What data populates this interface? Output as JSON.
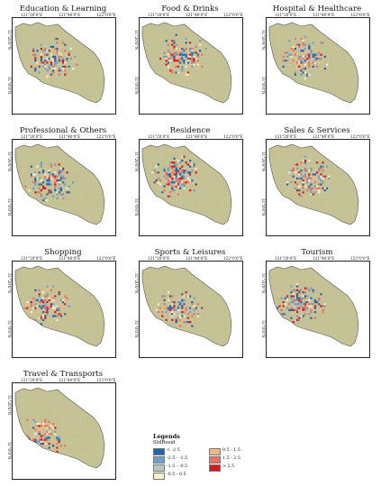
{
  "panels": [
    {
      "title": "Education & Learning"
    },
    {
      "title": "Food & Drinks"
    },
    {
      "title": "Hospital & Healthcare"
    },
    {
      "title": "Professional & Others"
    },
    {
      "title": "Residence"
    },
    {
      "title": "Sales & Services"
    },
    {
      "title": "Shopping"
    },
    {
      "title": "Sports & Leisures"
    },
    {
      "title": "Tourism"
    },
    {
      "title": "Travel & Transports"
    }
  ],
  "axis_ticks": {
    "longitude": [
      "121°20'0\"E",
      "121°40'0\"E",
      "122°0'0\"E"
    ],
    "latitude": [
      "31°20'0\"N",
      "31°0'0\"N"
    ]
  },
  "legend": {
    "title": "Legends",
    "subtitle": "StdResid",
    "classes": [
      {
        "label": "< -2.5",
        "color": "#2166ac"
      },
      {
        "label": "-2.5 - -1.5",
        "color": "#6f9ec6"
      },
      {
        "label": "-1.5 - -0.5",
        "color": "#b9c6c2"
      },
      {
        "label": "-0.5 - 0.5",
        "color": "#f4f2c6"
      },
      {
        "label": "0.5 - 1.5",
        "color": "#f2b884"
      },
      {
        "label": "1.5 - 2.5",
        "color": "#ee7060"
      },
      {
        "label": "> 2.5",
        "color": "#d7191c"
      }
    ]
  },
  "colors": {
    "land": "#c9c69a",
    "grid": "#b7b486",
    "border": "#555555"
  }
}
